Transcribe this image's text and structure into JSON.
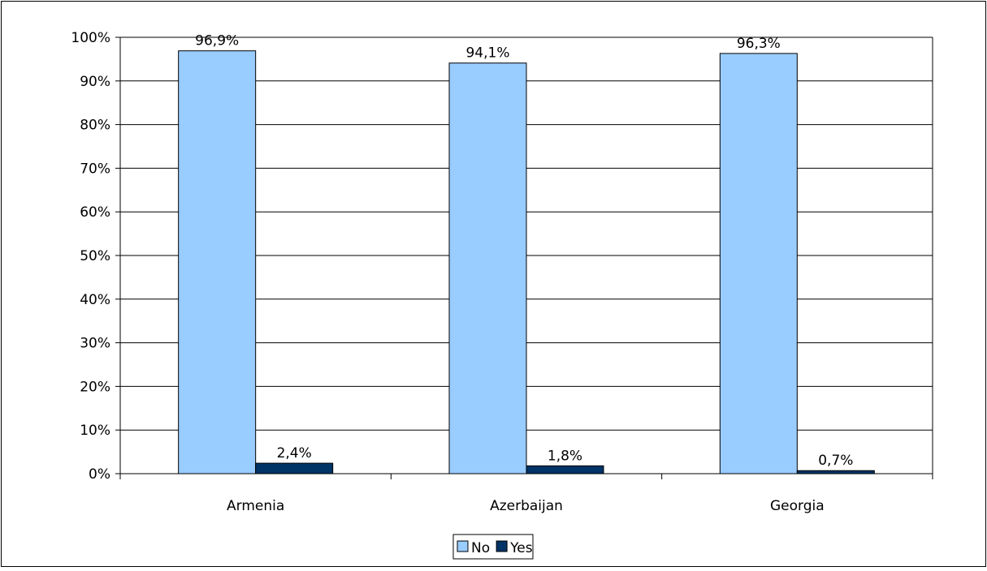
{
  "chart_data": {
    "type": "bar",
    "categories": [
      "Armenia",
      "Azerbaijan",
      "Georgia"
    ],
    "series": [
      {
        "name": "No",
        "values": [
          96.9,
          94.1,
          96.3
        ],
        "labels": [
          "96,9%",
          "94,1%",
          "96,3%"
        ],
        "color": "#99ccff"
      },
      {
        "name": "Yes",
        "values": [
          2.4,
          1.8,
          0.7
        ],
        "labels": [
          "2,4%",
          "1,8%",
          "0,7%"
        ],
        "color": "#003366"
      }
    ],
    "ylim": [
      0,
      100
    ],
    "y_ticks": [
      {
        "value": 0,
        "label": "0%"
      },
      {
        "value": 10,
        "label": "10%"
      },
      {
        "value": 20,
        "label": "20%"
      },
      {
        "value": 30,
        "label": "30%"
      },
      {
        "value": 40,
        "label": "40%"
      },
      {
        "value": 50,
        "label": "50%"
      },
      {
        "value": 60,
        "label": "60%"
      },
      {
        "value": 70,
        "label": "70%"
      },
      {
        "value": 80,
        "label": "80%"
      },
      {
        "value": 90,
        "label": "90%"
      },
      {
        "value": 100,
        "label": "100%"
      }
    ],
    "grid": true,
    "legend": "bottom-center",
    "title": "",
    "xlabel": "",
    "ylabel": ""
  }
}
